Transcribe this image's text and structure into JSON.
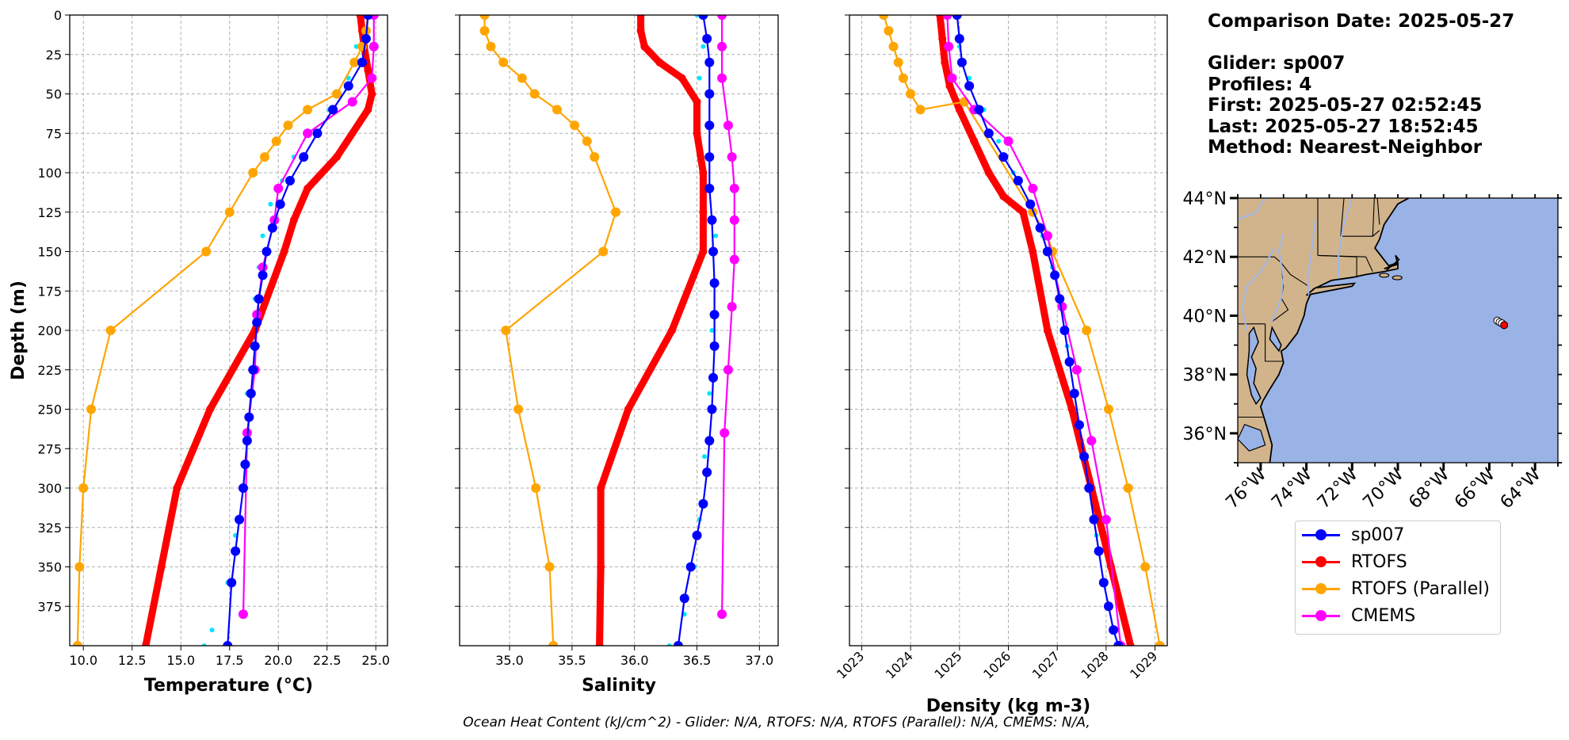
{
  "info": {
    "comparison_date": "Comparison Date: 2025-05-27",
    "glider": "Glider: sp007",
    "profiles": "Profiles: 4",
    "first": "First: 2025-05-27 02:52:45",
    "last": "Last: 2025-05-27 18:52:45",
    "method": "Method: Nearest-Neighbor"
  },
  "footer": "Ocean Heat Content (kJ/cm^2) - Glider: N/A,  RTOFS: N/A,  RTOFS (Parallel): N/A,  CMEMS: N/A,",
  "colors": {
    "sp007": "#0000ff",
    "glider_raw": "#00e5ff",
    "RTOFS": "#ff0000",
    "RTOFS (Parallel)": "#ffa500",
    "CMEMS": "#ff00ff",
    "land": "#d2b48c",
    "ocean": "#99b3e6",
    "grid": "#b0b0b0"
  },
  "legend": {
    "items": [
      "sp007",
      "RTOFS",
      "RTOFS (Parallel)",
      "CMEMS"
    ]
  },
  "chart_data": [
    {
      "type": "line",
      "xlabel": "Temperature (°C)",
      "ylabel": "Depth (m)",
      "xlim": [
        9.3,
        25.6
      ],
      "ylim": [
        400,
        0
      ],
      "xticks": [
        "10.0",
        "12.5",
        "15.0",
        "17.5",
        "20.0",
        "22.5",
        "25.0"
      ],
      "xtick_values": [
        10,
        12.5,
        15,
        17.5,
        20,
        22.5,
        25
      ],
      "yticks": [
        "0",
        "25",
        "50",
        "75",
        "100",
        "125",
        "150",
        "175",
        "200",
        "225",
        "250",
        "275",
        "300",
        "325",
        "350",
        "375"
      ],
      "ytick_values": [
        0,
        25,
        50,
        75,
        100,
        125,
        150,
        175,
        200,
        225,
        250,
        275,
        300,
        325,
        350,
        375
      ],
      "grid": true,
      "series": [
        {
          "name": "RTOFS",
          "x": [
            24.2,
            24.3,
            24.4,
            24.6,
            24.8,
            24.6,
            23.0,
            21.5,
            20.8,
            20.3,
            18.8,
            16.5,
            14.8,
            14.0,
            13.2
          ],
          "y": [
            0,
            10,
            20,
            35,
            50,
            60,
            90,
            110,
            130,
            150,
            200,
            250,
            300,
            350,
            400
          ]
        },
        {
          "name": "RTOFS (Parallel)",
          "x": [
            24.6,
            24.5,
            24.3,
            23.9,
            23.0,
            21.5,
            20.5,
            19.9,
            19.3,
            18.7,
            17.5,
            16.3,
            11.4,
            10.4,
            10.0,
            9.8,
            9.7
          ],
          "y": [
            0,
            10,
            20,
            30,
            50,
            60,
            70,
            80,
            90,
            100,
            125,
            150,
            200,
            250,
            300,
            350,
            400
          ]
        },
        {
          "name": "CMEMS",
          "x": [
            24.9,
            24.9,
            24.8,
            23.8,
            21.5,
            20.0,
            19.8,
            19.2,
            18.9,
            18.8,
            18.4,
            18.2
          ],
          "y": [
            0,
            20,
            40,
            55,
            75,
            110,
            130,
            160,
            190,
            225,
            265,
            380
          ]
        },
        {
          "name": "sp007",
          "x": [
            24.6,
            24.5,
            24.3,
            23.6,
            22.8,
            22.0,
            21.3,
            20.6,
            20.1,
            19.7,
            19.4,
            19.2,
            19.0,
            18.9,
            18.8,
            18.7,
            18.6,
            18.5,
            18.4,
            18.3,
            18.2,
            18.0,
            17.8,
            17.6,
            17.4
          ],
          "y": [
            0,
            15,
            30,
            45,
            60,
            75,
            90,
            105,
            120,
            135,
            150,
            165,
            180,
            195,
            210,
            225,
            240,
            255,
            270,
            285,
            300,
            320,
            340,
            360,
            400
          ]
        },
        {
          "name": "Glider profiles",
          "x": [
            24.2,
            24.0,
            23.6,
            22.6,
            21.6,
            20.8,
            20.2,
            19.6,
            19.2,
            19.0,
            18.8,
            18.6,
            18.4,
            18.3,
            18.1,
            17.8,
            17.4,
            16.6,
            16.2
          ],
          "y": [
            0,
            20,
            40,
            60,
            75,
            90,
            105,
            120,
            140,
            160,
            180,
            210,
            240,
            270,
            300,
            330,
            360,
            390,
            400
          ]
        }
      ]
    },
    {
      "type": "line",
      "xlabel": "Salinity",
      "xlim": [
        34.6,
        37.15
      ],
      "ylim": [
        400,
        0
      ],
      "xticks": [
        "35.0",
        "35.5",
        "36.0",
        "36.5",
        "37.0"
      ],
      "xtick_values": [
        35.0,
        35.5,
        36.0,
        36.5,
        37.0
      ],
      "grid": true,
      "series": [
        {
          "name": "RTOFS",
          "x": [
            36.05,
            36.05,
            36.08,
            36.2,
            36.38,
            36.5,
            36.5,
            36.55,
            36.55,
            36.55,
            36.3,
            35.95,
            35.73,
            35.73,
            35.72
          ],
          "y": [
            0,
            10,
            20,
            30,
            40,
            55,
            75,
            100,
            125,
            150,
            200,
            250,
            300,
            350,
            400
          ]
        },
        {
          "name": "RTOFS (Parallel)",
          "x": [
            34.8,
            34.8,
            34.85,
            34.95,
            35.1,
            35.2,
            35.38,
            35.52,
            35.62,
            35.68,
            35.85,
            35.75,
            34.97,
            35.07,
            35.21,
            35.32,
            35.35
          ],
          "y": [
            0,
            10,
            20,
            30,
            40,
            50,
            60,
            70,
            80,
            90,
            125,
            150,
            200,
            250,
            300,
            350,
            400
          ]
        },
        {
          "name": "CMEMS",
          "x": [
            36.7,
            36.7,
            36.7,
            36.75,
            36.78,
            36.8,
            36.8,
            36.8,
            36.78,
            36.75,
            36.72,
            36.7
          ],
          "y": [
            0,
            20,
            40,
            70,
            90,
            110,
            130,
            155,
            185,
            225,
            265,
            380
          ]
        },
        {
          "name": "sp007",
          "x": [
            36.55,
            36.58,
            36.6,
            36.6,
            36.6,
            36.6,
            36.6,
            36.62,
            36.63,
            36.64,
            36.64,
            36.64,
            36.63,
            36.62,
            36.6,
            36.58,
            36.55,
            36.5,
            36.45,
            36.4,
            36.35
          ],
          "y": [
            0,
            15,
            30,
            50,
            70,
            90,
            110,
            130,
            150,
            170,
            190,
            210,
            230,
            250,
            270,
            290,
            310,
            330,
            350,
            370,
            400
          ]
        },
        {
          "name": "Glider profiles",
          "x": [
            36.5,
            36.55,
            36.52,
            36.62,
            36.6,
            36.58,
            36.62,
            36.65,
            36.65,
            36.62,
            36.6,
            36.56,
            36.52,
            36.48,
            36.4,
            36.28
          ],
          "y": [
            0,
            20,
            40,
            50,
            70,
            90,
            110,
            140,
            170,
            200,
            240,
            280,
            320,
            350,
            380,
            400
          ]
        }
      ]
    },
    {
      "type": "line",
      "xlabel": "Density (kg m-3)",
      "xlim": [
        1022.75,
        1029.25
      ],
      "ylim": [
        400,
        0
      ],
      "xticks": [
        "1023",
        "1024",
        "1025",
        "1026",
        "1027",
        "1028",
        "1029"
      ],
      "xtick_values": [
        1023,
        1024,
        1025,
        1026,
        1027,
        1028,
        1029
      ],
      "grid": true,
      "series": [
        {
          "name": "RTOFS",
          "x": [
            1024.6,
            1024.65,
            1024.7,
            1024.8,
            1025.0,
            1025.3,
            1025.6,
            1025.9,
            1026.3,
            1026.5,
            1026.8,
            1027.3,
            1027.7,
            1028.1,
            1028.5
          ],
          "y": [
            0,
            15,
            30,
            45,
            60,
            80,
            100,
            115,
            125,
            150,
            200,
            250,
            300,
            350,
            400
          ]
        },
        {
          "name": "RTOFS (Parallel)",
          "x": [
            1023.45,
            1023.55,
            1023.65,
            1023.75,
            1023.85,
            1024.0,
            1024.2,
            1025.1,
            1026.5,
            1026.8,
            1026.9,
            1027.6,
            1028.05,
            1028.45,
            1028.8,
            1029.1
          ],
          "y": [
            0,
            10,
            20,
            30,
            40,
            50,
            60,
            55,
            125,
            140,
            150,
            200,
            250,
            300,
            350,
            400
          ]
        },
        {
          "name": "CMEMS",
          "x": [
            1024.75,
            1024.78,
            1024.85,
            1025.3,
            1026.0,
            1026.5,
            1026.8,
            1027.1,
            1027.4,
            1027.7,
            1028.0,
            1028.3
          ],
          "y": [
            0,
            20,
            40,
            60,
            80,
            110,
            140,
            185,
            225,
            270,
            320,
            400
          ]
        },
        {
          "name": "sp007",
          "x": [
            1024.95,
            1025.0,
            1025.05,
            1025.2,
            1025.4,
            1025.6,
            1025.9,
            1026.2,
            1026.45,
            1026.65,
            1026.8,
            1026.95,
            1027.05,
            1027.15,
            1027.25,
            1027.35,
            1027.45,
            1027.55,
            1027.65,
            1027.75,
            1027.85,
            1027.95,
            1028.05,
            1028.15,
            1028.25
          ],
          "y": [
            0,
            15,
            30,
            45,
            60,
            75,
            90,
            105,
            120,
            135,
            150,
            165,
            180,
            200,
            220,
            240,
            260,
            280,
            300,
            320,
            340,
            360,
            375,
            390,
            400
          ]
        },
        {
          "name": "Glider profiles",
          "x": [
            1024.9,
            1025.0,
            1025.2,
            1025.5,
            1025.8,
            1026.1,
            1026.4,
            1026.7,
            1026.9,
            1027.05,
            1027.2,
            1027.35,
            1027.5,
            1027.65,
            1027.8,
            1027.95,
            1028.1,
            1028.2
          ],
          "y": [
            0,
            20,
            40,
            60,
            80,
            100,
            120,
            140,
            160,
            180,
            210,
            240,
            270,
            300,
            330,
            360,
            390,
            400
          ]
        }
      ]
    },
    {
      "type": "map",
      "lon_range": [
        -77,
        -63
      ],
      "lat_range": [
        35,
        44
      ],
      "lon_ticks": [
        "76°W",
        "74°W",
        "72°W",
        "70°W",
        "68°W",
        "66°W",
        "64°W"
      ],
      "lon_tick_values": [
        -76,
        -74,
        -72,
        -70,
        -68,
        -66,
        -64
      ],
      "lat_ticks": [
        "44°N",
        "42°N",
        "40°N",
        "38°N",
        "36°N"
      ],
      "lat_tick_values": [
        44,
        42,
        40,
        38,
        36
      ],
      "glider_positions": [
        [
          -65.65,
          39.83
        ],
        [
          -65.55,
          39.78
        ],
        [
          -65.45,
          39.74
        ],
        [
          -65.35,
          39.68
        ]
      ]
    }
  ]
}
